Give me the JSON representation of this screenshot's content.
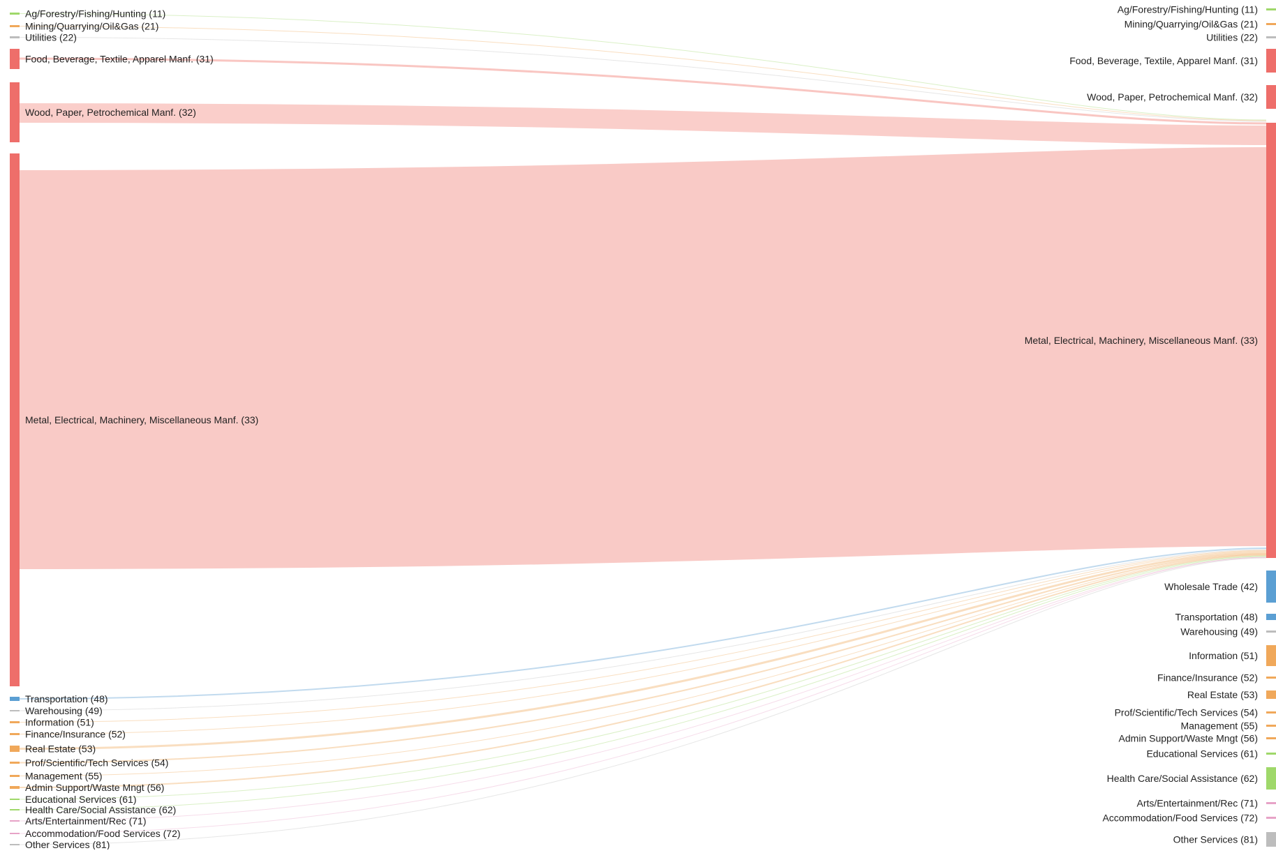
{
  "diagram": {
    "type": "sankey",
    "colors": {
      "manufacturing_node": "#ee6e6a",
      "manufacturing_link": "#f7b3ae",
      "transportation": "#5b9fd3",
      "orange": "#f0a85a",
      "green": "#9fd86a",
      "gray": "#bdbdbd"
    },
    "left_nodes": [
      {
        "id": "L11",
        "label": "Ag/Forestry/Fishing/Hunting (11)",
        "color": "#9fd86a"
      },
      {
        "id": "L21",
        "label": "Mining/Quarrying/Oil&Gas (21)",
        "color": "#f0a85a"
      },
      {
        "id": "L22",
        "label": "Utilities (22)",
        "color": "#bdbdbd"
      },
      {
        "id": "L31",
        "label": "Food, Beverage, Textile, Apparel Manf. (31)",
        "color": "#ee6e6a"
      },
      {
        "id": "L32",
        "label": "Wood, Paper, Petrochemical Manf. (32)",
        "color": "#ee6e6a"
      },
      {
        "id": "L33",
        "label": "Metal, Electrical, Machinery, Miscellaneous Manf. (33)",
        "color": "#ee6e6a"
      },
      {
        "id": "L48",
        "label": "Transportation (48)",
        "color": "#5b9fd3"
      },
      {
        "id": "L49",
        "label": "Warehousing (49)",
        "color": "#bdbdbd"
      },
      {
        "id": "L51",
        "label": "Information (51)",
        "color": "#f0a85a"
      },
      {
        "id": "L52",
        "label": "Finance/Insurance (52)",
        "color": "#f0a85a"
      },
      {
        "id": "L53",
        "label": "Real Estate (53)",
        "color": "#f0a85a"
      },
      {
        "id": "L54",
        "label": "Prof/Scientific/Tech Services (54)",
        "color": "#f0a85a"
      },
      {
        "id": "L55",
        "label": "Management (55)",
        "color": "#f0a85a"
      },
      {
        "id": "L56",
        "label": "Admin Support/Waste Mngt (56)",
        "color": "#f0a85a"
      },
      {
        "id": "L61",
        "label": "Educational Services (61)",
        "color": "#9fd86a"
      },
      {
        "id": "L62",
        "label": "Health Care/Social Assistance (62)",
        "color": "#9fd86a"
      },
      {
        "id": "L71",
        "label": "Arts/Entertainment/Rec (71)",
        "color": "#e7a3c7"
      },
      {
        "id": "L72",
        "label": "Accommodation/Food Services (72)",
        "color": "#e7a3c7"
      },
      {
        "id": "L81",
        "label": "Other Services (81)",
        "color": "#bdbdbd"
      }
    ],
    "right_nodes": [
      {
        "id": "R11",
        "label": "Ag/Forestry/Fishing/Hunting (11)",
        "color": "#9fd86a"
      },
      {
        "id": "R21",
        "label": "Mining/Quarrying/Oil&Gas (21)",
        "color": "#f0a85a"
      },
      {
        "id": "R22",
        "label": "Utilities (22)",
        "color": "#bdbdbd"
      },
      {
        "id": "R31",
        "label": "Food, Beverage, Textile, Apparel Manf. (31)",
        "color": "#ee6e6a"
      },
      {
        "id": "R32",
        "label": "Wood, Paper, Petrochemical Manf. (32)",
        "color": "#ee6e6a"
      },
      {
        "id": "R33",
        "label": "Metal, Electrical, Machinery, Miscellaneous Manf. (33)",
        "color": "#ee6e6a"
      },
      {
        "id": "R42",
        "label": "Wholesale Trade (42)",
        "color": "#5b9fd3"
      },
      {
        "id": "R48",
        "label": "Transportation (48)",
        "color": "#5b9fd3"
      },
      {
        "id": "R49",
        "label": "Warehousing (49)",
        "color": "#bdbdbd"
      },
      {
        "id": "R51",
        "label": "Information (51)",
        "color": "#f0a85a"
      },
      {
        "id": "R52",
        "label": "Finance/Insurance (52)",
        "color": "#f0a85a"
      },
      {
        "id": "R53",
        "label": "Real Estate (53)",
        "color": "#f0a85a"
      },
      {
        "id": "R54",
        "label": "Prof/Scientific/Tech Services (54)",
        "color": "#f0a85a"
      },
      {
        "id": "R55",
        "label": "Management (55)",
        "color": "#f0a85a"
      },
      {
        "id": "R56",
        "label": "Admin Support/Waste Mngt (56)",
        "color": "#f0a85a"
      },
      {
        "id": "R61",
        "label": "Educational Services (61)",
        "color": "#9fd86a"
      },
      {
        "id": "R62",
        "label": "Health Care/Social Assistance (62)",
        "color": "#9fd86a"
      },
      {
        "id": "R71",
        "label": "Arts/Entertainment/Rec (71)",
        "color": "#e7a3c7"
      },
      {
        "id": "R72",
        "label": "Accommodation/Food Services (72)",
        "color": "#e7a3c7"
      },
      {
        "id": "R81",
        "label": "Other Services (81)",
        "color": "#bdbdbd"
      }
    ],
    "links": [
      {
        "source": "L11",
        "target": "R33",
        "color": "#9fd86a"
      },
      {
        "source": "L21",
        "target": "R33",
        "color": "#f0a85a"
      },
      {
        "source": "L22",
        "target": "R33",
        "color": "#bdbdbd"
      },
      {
        "source": "L31",
        "target": "R33",
        "color": "#f7b3ae"
      },
      {
        "source": "L32",
        "target": "R33",
        "color": "#f7b3ae"
      },
      {
        "source": "L33",
        "target": "R33",
        "color": "#f7b3ae"
      },
      {
        "source": "L48",
        "target": "R33",
        "color": "#5b9fd3"
      },
      {
        "source": "L49",
        "target": "R33",
        "color": "#bdbdbd"
      },
      {
        "source": "L51",
        "target": "R33",
        "color": "#f0a85a"
      },
      {
        "source": "L52",
        "target": "R33",
        "color": "#f0a85a"
      },
      {
        "source": "L53",
        "target": "R33",
        "color": "#f0a85a"
      },
      {
        "source": "L54",
        "target": "R33",
        "color": "#f0a85a"
      },
      {
        "source": "L55",
        "target": "R33",
        "color": "#f0a85a"
      },
      {
        "source": "L56",
        "target": "R33",
        "color": "#f0a85a"
      },
      {
        "source": "L61",
        "target": "R33",
        "color": "#9fd86a"
      },
      {
        "source": "L62",
        "target": "R33",
        "color": "#9fd86a"
      },
      {
        "source": "L71",
        "target": "R33",
        "color": "#e7a3c7"
      },
      {
        "source": "L72",
        "target": "R33",
        "color": "#e7a3c7"
      },
      {
        "source": "L81",
        "target": "R33",
        "color": "#bdbdbd"
      }
    ]
  }
}
